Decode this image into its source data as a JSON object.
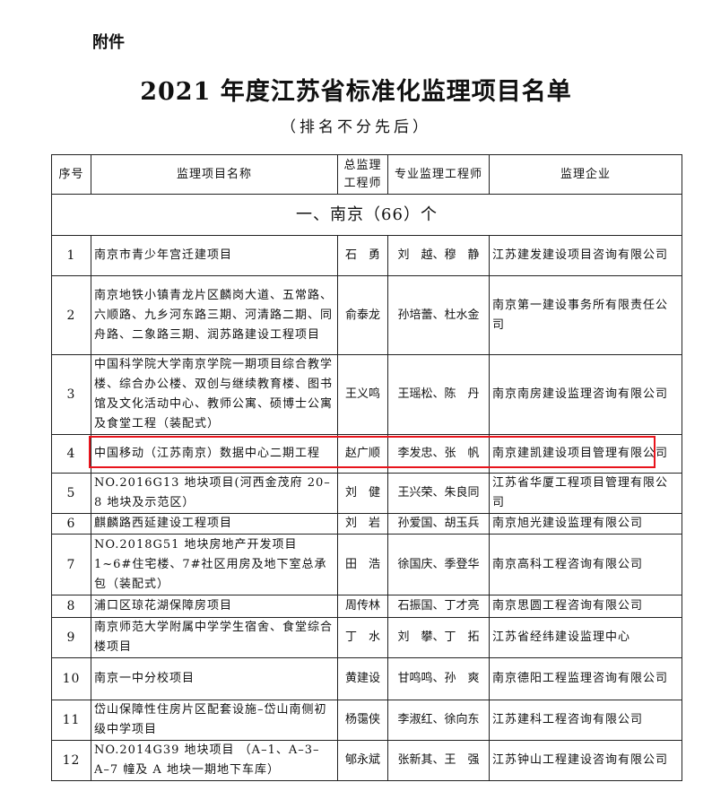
{
  "attachment": "附件",
  "title": "2021 年度江苏省标准化监理项目名单",
  "subtitle": "（排名不分先后）",
  "table": {
    "headers": [
      "序号",
      "监理项目名称",
      "总监理工程师",
      "专业监理工程师",
      "监理企业"
    ],
    "section": "一、南京（66）个",
    "rows": [
      {
        "no": "1",
        "project": "南京市青少年宫迁建项目",
        "chief": "石　勇",
        "engineers": "刘　越、穆　静",
        "company": "江苏建发建设项目咨询有限公司"
      },
      {
        "no": "2",
        "project": "南京地铁小镇青龙片区麟岗大道、五常路、六顺路、九乡河东路三期、河清路二期、同舟路、二象路三期、润苏路建设工程项目",
        "chief": "俞泰龙",
        "engineers": "孙培蕾、杜水金",
        "company": "南京第一建设事务所有限责任公司"
      },
      {
        "no": "3",
        "project": "中国科学院大学南京学院一期项目综合教学楼、综合办公楼、双创与继续教育楼、图书馆及文化活动中心、教师公寓、硕博士公寓及食堂工程（装配式）",
        "chief": "王义鸣",
        "engineers": "王瑶松、陈　丹",
        "company": "南京南房建设监理咨询有限公司"
      },
      {
        "no": "4",
        "project": "中国移动（江苏南京）数据中心二期工程",
        "chief": "赵广顺",
        "engineers": "李发忠、张　帆",
        "company": "南京建凯建设项目管理有限公司"
      },
      {
        "no": "5",
        "project": "NO.2016G13 地块项目(河西金茂府 20–8 地块及示范区）",
        "chief": "刘　健",
        "engineers": "王兴荣、朱良同",
        "company": "江苏省华厦工程项目管理有限公司"
      },
      {
        "no": "6",
        "project": "麒麟路西延建设工程项目",
        "chief": "刘　岩",
        "engineers": "孙爱国、胡玉兵",
        "company": "南京旭光建设监理有限公司"
      },
      {
        "no": "7",
        "project": "NO.2018G51 地块房地产开发项目 1~6#住宅楼、7#社区用房及地下室总承包（装配式）",
        "chief": "田　浩",
        "engineers": "徐国庆、季登华",
        "company": "南京高科工程咨询有限公司"
      },
      {
        "no": "8",
        "project": "浦口区琼花湖保障房项目",
        "chief": "周传林",
        "engineers": "石振国、丁才亮",
        "company": "南京思圆工程咨询有限公司"
      },
      {
        "no": "9",
        "project": "南京师范大学附属中学学生宿舍、食堂综合楼项目",
        "chief": "丁　水",
        "engineers": "刘　攀、丁　拓",
        "company": "江苏省经纬建设监理中心"
      },
      {
        "no": "10",
        "project": "南京一中分校项目",
        "chief": "黄建设",
        "engineers": "甘鸣鸣、孙　爽",
        "company": "南京德阳工程监理咨询有限公司"
      },
      {
        "no": "11",
        "project": "岱山保障性住房片区配套设施–岱山南侧初级中学项目",
        "chief": "杨霭侠",
        "engineers": "李淑红、徐向东",
        "company": "江苏建科工程咨询有限公司"
      },
      {
        "no": "12",
        "project": "NO.2014G39 地块项目 （A–1、A–3–A–7 幢及 A 地块一期地下车库）",
        "chief": "郇永斌",
        "engineers": "张新其、王　强",
        "company": "江苏钟山工程建设咨询有限公司"
      }
    ]
  },
  "highlight_color": "#e8141c"
}
